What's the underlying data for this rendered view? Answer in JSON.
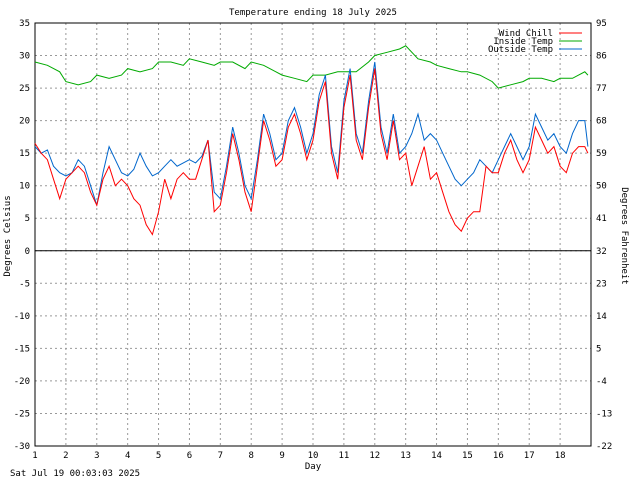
{
  "chart_data": {
    "type": "line",
    "title": "Temperature ending 18 July 2025",
    "xlabel": "Day",
    "ylabel_left": "Degrees Celsius",
    "ylabel_right": "Degrees Fahrenheit",
    "xlim": [
      1,
      19
    ],
    "ylim": [
      -30,
      35
    ],
    "x_ticks": [
      "1",
      "2",
      "3",
      "4",
      "5",
      "6",
      "7",
      "8",
      "9",
      "10",
      "11",
      "12",
      "13",
      "14",
      "15",
      "16",
      "17",
      "18"
    ],
    "y_ticks_left": [
      "35",
      "30",
      "25",
      "20",
      "15",
      "10",
      "5",
      "0",
      "-5",
      "-10",
      "-15",
      "-20",
      "-25",
      "-30"
    ],
    "y_ticks_right": [
      "95",
      "86",
      "77",
      "68",
      "59",
      "50",
      "41",
      "32",
      "23",
      "14",
      "5",
      "-4",
      "-13",
      "-22"
    ],
    "grid": true,
    "legend": "top-right",
    "series": [
      {
        "name": "Wind Chill",
        "color": "#ff0000",
        "x": [
          1,
          1.2,
          1.4,
          1.6,
          1.8,
          2,
          2.2,
          2.4,
          2.6,
          2.8,
          3,
          3.2,
          3.4,
          3.6,
          3.8,
          4,
          4.2,
          4.4,
          4.6,
          4.8,
          5,
          5.2,
          5.4,
          5.6,
          5.8,
          6,
          6.2,
          6.4,
          6.6,
          6.8,
          7,
          7.2,
          7.4,
          7.6,
          7.8,
          8,
          8.2,
          8.4,
          8.6,
          8.8,
          9,
          9.2,
          9.4,
          9.6,
          9.8,
          10,
          10.2,
          10.4,
          10.6,
          10.8,
          11,
          11.2,
          11.4,
          11.6,
          11.8,
          12,
          12.2,
          12.4,
          12.6,
          12.8,
          13,
          13.2,
          13.4,
          13.6,
          13.8,
          14,
          14.2,
          14.4,
          14.6,
          14.8,
          15,
          15.2,
          15.4,
          15.6,
          15.8,
          16,
          16.2,
          16.4,
          16.6,
          16.8,
          17,
          17.2,
          17.4,
          17.6,
          17.8,
          18,
          18.2,
          18.4,
          18.6,
          18.8,
          18.9
        ],
        "values": [
          16.5,
          15,
          14,
          11,
          8,
          11,
          12,
          13,
          12,
          9,
          7,
          11,
          13,
          10,
          11,
          10,
          8,
          7,
          4,
          2.5,
          6,
          11,
          8,
          11,
          12,
          11,
          11,
          14,
          17,
          6,
          7,
          12,
          18,
          14,
          9,
          6,
          13,
          20,
          17,
          13,
          14,
          19,
          21,
          18,
          14,
          17,
          23,
          26,
          15,
          11,
          22,
          27,
          17,
          14,
          22,
          28,
          18,
          14,
          20,
          14,
          15,
          10,
          13,
          16,
          11,
          12,
          9,
          6,
          4,
          3,
          5,
          6,
          6,
          13,
          12,
          12,
          15,
          17,
          14,
          12,
          14,
          19,
          17,
          15,
          16,
          13,
          12,
          15,
          16,
          16,
          15
        ]
      },
      {
        "name": "Inside Temp",
        "color": "#00aa00",
        "x": [
          1,
          1.4,
          1.8,
          2,
          2.4,
          2.8,
          3,
          3.4,
          3.8,
          4,
          4.4,
          4.8,
          5,
          5.4,
          5.8,
          6,
          6.4,
          6.8,
          7,
          7.4,
          7.8,
          8,
          8.4,
          8.8,
          9,
          9.4,
          9.8,
          10,
          10.4,
          10.8,
          11,
          11.4,
          11.8,
          12,
          12.4,
          12.8,
          13,
          13.4,
          13.8,
          14,
          14.4,
          14.8,
          15,
          15.4,
          15.8,
          16,
          16.4,
          16.8,
          17,
          17.4,
          17.8,
          18,
          18.4,
          18.8,
          18.9
        ],
        "values": [
          29,
          28.5,
          27.5,
          26,
          25.5,
          26,
          27,
          26.5,
          27,
          28,
          27.5,
          28,
          29,
          29,
          28.5,
          29.5,
          29,
          28.5,
          29,
          29,
          28,
          29,
          28.5,
          27.5,
          27,
          26.5,
          26,
          27,
          27,
          27.5,
          27.5,
          27.5,
          29,
          30,
          30.5,
          31,
          31.5,
          29.5,
          29,
          28.5,
          28,
          27.5,
          27.5,
          27,
          26,
          25,
          25.5,
          26,
          26.5,
          26.5,
          26,
          26.5,
          26.5,
          27.5,
          27
        ]
      },
      {
        "name": "Outside Temp",
        "color": "#0066cc",
        "x": [
          1,
          1.2,
          1.4,
          1.6,
          1.8,
          2,
          2.2,
          2.4,
          2.6,
          2.8,
          3,
          3.2,
          3.4,
          3.6,
          3.8,
          4,
          4.2,
          4.4,
          4.6,
          4.8,
          5,
          5.2,
          5.4,
          5.6,
          5.8,
          6,
          6.2,
          6.4,
          6.6,
          6.8,
          7,
          7.2,
          7.4,
          7.6,
          7.8,
          8,
          8.2,
          8.4,
          8.6,
          8.8,
          9,
          9.2,
          9.4,
          9.6,
          9.8,
          10,
          10.2,
          10.4,
          10.6,
          10.8,
          11,
          11.2,
          11.4,
          11.6,
          11.8,
          12,
          12.2,
          12.4,
          12.6,
          12.8,
          13,
          13.2,
          13.4,
          13.6,
          13.8,
          14,
          14.2,
          14.4,
          14.6,
          14.8,
          15,
          15.2,
          15.4,
          15.6,
          15.8,
          16,
          16.2,
          16.4,
          16.6,
          16.8,
          17,
          17.2,
          17.4,
          17.6,
          17.8,
          18,
          18.2,
          18.4,
          18.6,
          18.8,
          18.9
        ],
        "values": [
          16,
          15,
          15.5,
          13,
          12,
          11.5,
          12,
          14,
          13,
          10,
          7,
          12,
          16,
          14,
          12,
          11.5,
          12.5,
          15,
          13,
          11.5,
          12,
          13,
          14,
          13,
          13.5,
          14,
          13.5,
          14.5,
          17,
          9,
          8,
          13,
          19,
          15,
          10,
          8,
          14,
          21,
          18,
          14,
          15,
          20,
          22,
          19,
          15,
          18,
          24,
          27,
          16,
          12,
          23,
          28,
          18,
          15,
          23,
          29,
          19,
          15,
          21,
          15,
          16,
          18,
          21,
          17,
          18,
          17,
          15,
          13,
          11,
          10,
          11,
          12,
          14,
          13,
          12,
          14,
          16,
          18,
          16,
          14,
          16,
          21,
          19,
          17,
          18,
          16,
          15,
          18,
          20,
          20,
          16
        ]
      }
    ]
  },
  "footer": {
    "timestamp": "Sat Jul 19 00:03:03 2025"
  }
}
